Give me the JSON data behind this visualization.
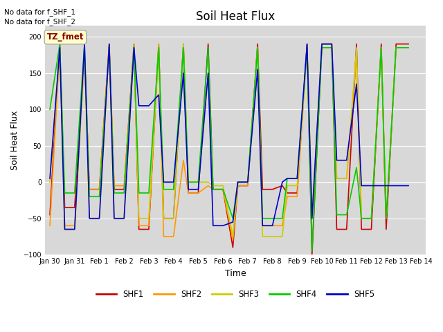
{
  "title": "Soil Heat Flux",
  "ylabel": "Soil Heat Flux",
  "xlabel": "Time",
  "note_line1": "No data for f_SHF_1",
  "note_line2": "No data for f_SHF_2",
  "tz_label": "TZ_fmet",
  "ylim": [
    -100,
    215
  ],
  "yticks": [
    -100,
    -50,
    0,
    50,
    100,
    150,
    200
  ],
  "bg_color": "#d8d8d8",
  "legend_entries": [
    "SHF1",
    "SHF2",
    "SHF3",
    "SHF4",
    "SHF5"
  ],
  "legend_colors": [
    "#cc0000",
    "#ff9900",
    "#cccc00",
    "#00cc00",
    "#0000cc"
  ],
  "x_labels": [
    "Jan 30",
    "Jan 31",
    "Feb 1",
    "Feb 2",
    "Feb 3",
    "Feb 4",
    "Feb 5",
    "Feb 6",
    "Feb 7",
    "Feb 8",
    "Feb 9",
    "Feb 10",
    "Feb 11",
    "Feb 12",
    "Feb 13",
    "Feb 14"
  ],
  "x_values": [
    0,
    1,
    2,
    3,
    4,
    5,
    6,
    7,
    8,
    9,
    10,
    11,
    12,
    13,
    14,
    15
  ],
  "series": {
    "SHF1": {
      "color": "#cc0000",
      "x": [
        0,
        0.4,
        0.6,
        1,
        1.4,
        1.6,
        2,
        2.4,
        2.6,
        3,
        3.4,
        3.6,
        4,
        4.4,
        4.6,
        5,
        5.4,
        5.6,
        6,
        6.4,
        6.6,
        7,
        7.4,
        7.6,
        8,
        8.4,
        8.6,
        9,
        9.4,
        9.6,
        10,
        10.4,
        10.6,
        11,
        11.4,
        11.6,
        12,
        12.4,
        12.6,
        13,
        13.4,
        13.6,
        14,
        14.5
      ],
      "y": [
        -45,
        190,
        -35,
        -35,
        175,
        -10,
        -10,
        190,
        -10,
        -10,
        190,
        -65,
        -65,
        190,
        -50,
        -50,
        190,
        -15,
        -15,
        190,
        -10,
        -10,
        -90,
        -5,
        -5,
        190,
        -10,
        -10,
        -5,
        -15,
        -15,
        190,
        -100,
        190,
        190,
        -65,
        -65,
        190,
        -65,
        -65,
        190,
        -65,
        190,
        190
      ]
    },
    "SHF2": {
      "color": "#ff9900",
      "x": [
        0,
        0.4,
        0.6,
        1,
        1.4,
        1.6,
        2,
        2.4,
        2.6,
        3,
        3.4,
        3.6,
        4,
        4.4,
        4.6,
        5,
        5.4,
        5.6,
        6,
        6.4,
        6.6,
        7,
        7.4,
        7.6,
        8,
        8.4,
        8.6,
        9,
        9.4,
        9.6,
        10,
        10.4,
        10.6,
        11,
        11.4,
        11.6,
        12,
        12.4,
        12.6,
        13,
        13.4,
        13.6,
        14,
        14.5
      ],
      "y": [
        -60,
        185,
        -60,
        -60,
        175,
        -10,
        -10,
        185,
        -5,
        -5,
        185,
        -60,
        -60,
        185,
        -75,
        -75,
        30,
        -15,
        -15,
        -5,
        -10,
        -10,
        -80,
        -5,
        -5,
        185,
        -60,
        -60,
        -60,
        -20,
        -20,
        185,
        -45,
        185,
        185,
        5,
        5,
        175,
        -50,
        -50,
        185,
        -50,
        185,
        185
      ]
    },
    "SHF3": {
      "color": "#cccc00",
      "x": [
        0,
        0.4,
        0.6,
        1,
        1.4,
        1.6,
        2,
        2.4,
        2.6,
        3,
        3.4,
        3.6,
        4,
        4.4,
        4.6,
        5,
        5.4,
        5.6,
        6,
        6.4,
        6.6,
        7,
        7.4,
        7.6,
        8,
        8.4,
        8.6,
        9,
        9.4,
        9.6,
        10,
        10.4,
        10.6,
        11,
        11.4,
        11.6,
        12,
        12.4,
        12.6,
        13,
        13.4,
        13.6,
        14,
        14.5
      ],
      "y": [
        0,
        185,
        -65,
        -65,
        175,
        -50,
        -50,
        190,
        -50,
        -50,
        190,
        -50,
        -50,
        190,
        -50,
        -50,
        190,
        0,
        0,
        0,
        -5,
        -5,
        -75,
        0,
        0,
        185,
        -75,
        -75,
        -75,
        -5,
        -5,
        185,
        -50,
        190,
        190,
        5,
        5,
        185,
        -50,
        -50,
        185,
        -50,
        185,
        185
      ]
    },
    "SHF4": {
      "color": "#00cc00",
      "x": [
        0,
        0.4,
        0.6,
        1,
        1.4,
        1.6,
        2,
        2.4,
        2.6,
        3,
        3.4,
        3.6,
        4,
        4.4,
        4.6,
        5,
        5.4,
        5.6,
        6,
        6.4,
        6.6,
        7,
        7.4,
        7.6,
        8,
        8.4,
        8.6,
        9,
        9.4,
        9.6,
        10,
        10.4,
        10.6,
        11,
        11.4,
        11.6,
        12,
        12.4,
        12.6,
        13,
        13.4,
        13.6,
        14,
        14.5
      ],
      "y": [
        100,
        190,
        -15,
        -15,
        190,
        -20,
        -20,
        185,
        -15,
        -15,
        185,
        -15,
        -15,
        185,
        -10,
        -10,
        185,
        0,
        0,
        185,
        -10,
        -10,
        -50,
        0,
        0,
        185,
        -50,
        -50,
        -50,
        5,
        5,
        185,
        -95,
        185,
        185,
        -45,
        -45,
        20,
        -50,
        -50,
        185,
        -50,
        185,
        185
      ]
    },
    "SHF5": {
      "color": "#0000cc",
      "x": [
        0,
        0.4,
        0.6,
        1,
        1.4,
        1.6,
        2,
        2.4,
        2.6,
        3,
        3.4,
        3.6,
        4,
        4.4,
        4.6,
        5,
        5.4,
        5.6,
        6,
        6.4,
        6.6,
        7,
        7.4,
        7.6,
        8,
        8.4,
        8.6,
        9,
        9.4,
        9.6,
        10,
        10.4,
        10.6,
        11,
        11.4,
        11.6,
        12,
        12.4,
        12.6,
        13,
        13.4,
        13.6,
        14,
        14.5
      ],
      "y": [
        5,
        185,
        -65,
        -65,
        190,
        -50,
        -50,
        190,
        -50,
        -50,
        185,
        105,
        105,
        120,
        0,
        0,
        150,
        -10,
        -10,
        150,
        -60,
        -60,
        -55,
        0,
        0,
        155,
        -60,
        -60,
        0,
        5,
        5,
        190,
        -50,
        190,
        190,
        30,
        30,
        135,
        -5,
        -5,
        -5,
        -5,
        -5,
        -5
      ]
    }
  }
}
